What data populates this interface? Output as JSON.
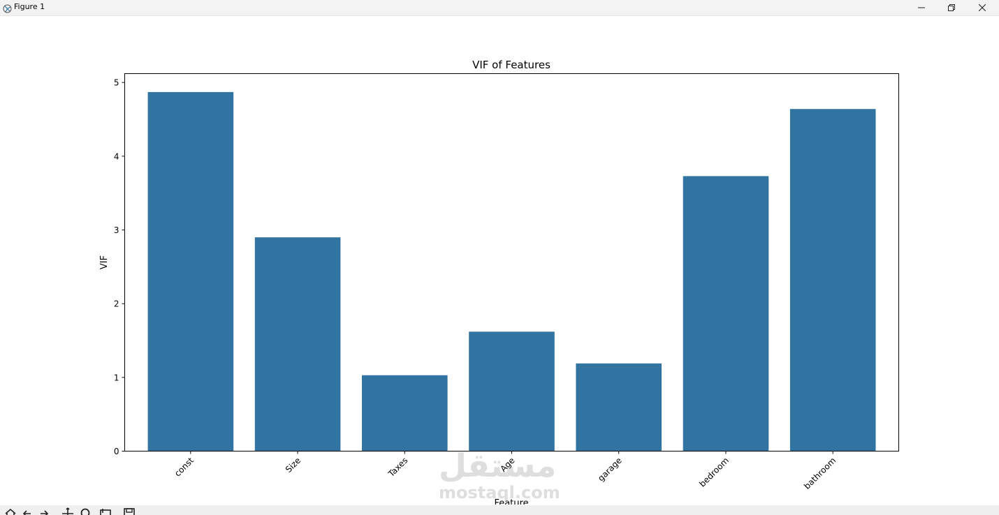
{
  "window": {
    "title": "Figure 1",
    "icons": {
      "app": "matplotlib-icon",
      "minimize": "minimize-icon",
      "maximize": "restore-icon",
      "close": "close-icon"
    }
  },
  "chart_data": {
    "type": "bar",
    "title": "VIF of Features",
    "xlabel": "Feature",
    "ylabel": "VIF",
    "categories": [
      "const",
      "Size",
      "Taxes",
      "Age",
      "garage",
      "bedroom",
      "bathroom"
    ],
    "values": [
      4.87,
      2.9,
      1.03,
      1.62,
      1.19,
      3.73,
      4.64
    ],
    "ylim": [
      0,
      5.12
    ],
    "yticks": [
      0,
      1,
      2,
      3,
      4,
      5
    ],
    "bar_color": "#3274a1",
    "grid": false,
    "legend": "none",
    "xtick_rotation": "45"
  },
  "toolbar": {
    "icons": [
      "home-icon",
      "back-icon",
      "forward-icon",
      "pan-icon",
      "zoom-icon",
      "configure-subplots-icon",
      "save-icon"
    ]
  },
  "watermark": {
    "arabic": "مستقل",
    "latin": "mostaql.com"
  }
}
